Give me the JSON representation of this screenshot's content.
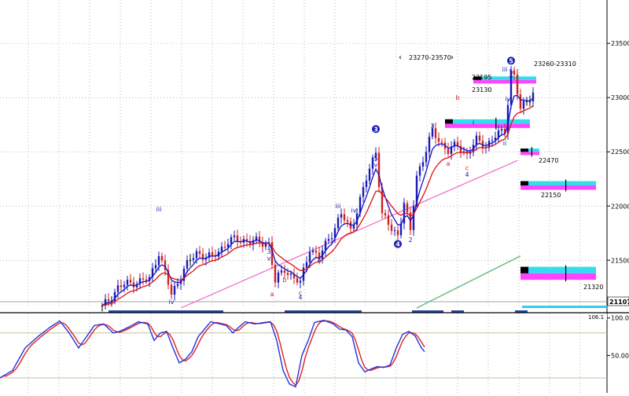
{
  "chart_data": [
    {
      "type": "candlestick",
      "panel": "price",
      "y_axis_side": "right",
      "ylim": [
        21060,
        23900
      ],
      "yticks": [
        21500,
        22000,
        22500,
        23000,
        23500
      ],
      "ytick_labels": [
        "21500",
        "22000",
        "22500",
        "23000",
        "23500"
      ],
      "last_price_label": "21107",
      "range_label": "23270-23570",
      "price_labels": [
        "23260-23310",
        "23195",
        "23130",
        "22470",
        "22150",
        "21320"
      ],
      "wave_labels": [
        {
          "text": "iii",
          "color": "#1a1ab4",
          "bar": 18,
          "price": 21950
        },
        {
          "text": "iv",
          "color": "#1a1ab4",
          "bar": 22,
          "price": 21095
        },
        {
          "text": "3",
          "color": "#1a1ab4",
          "bar": 53,
          "price": 21560
        },
        {
          "text": "v",
          "color": "#1a1ab4",
          "bar": 53,
          "price": 21500
        },
        {
          "text": "a",
          "color": "#cc2222",
          "bar": 54,
          "price": 21170
        },
        {
          "text": "b",
          "color": "#cc2222",
          "bar": 58,
          "price": 21300
        },
        {
          "text": "c",
          "color": "#cc2222",
          "bar": 63,
          "price": 21180
        },
        {
          "text": "4",
          "color": "#1a1ab4",
          "bar": 63,
          "price": 21140
        },
        {
          "text": "i",
          "color": "#1a1ab4",
          "bar": 65,
          "price": 21440
        },
        {
          "text": "ii",
          "color": "#1a1ab4",
          "bar": 69,
          "price": 21480
        },
        {
          "text": "iii",
          "color": "#1a1ab4",
          "bar": 75,
          "price": 21980
        },
        {
          "text": "iv",
          "color": "#1a1ab4",
          "bar": 80,
          "price": 21940
        },
        {
          "text": "5",
          "color": "#1a1ab4",
          "bar": 87,
          "price": 22420
        },
        {
          "text": "v",
          "color": "#1a1ab4",
          "bar": 87,
          "price": 22360
        },
        {
          "text": "1",
          "color": "#1a1ab4",
          "bar": 96,
          "price": 21990
        },
        {
          "text": "2",
          "color": "#1a1ab4",
          "bar": 98,
          "price": 21670
        },
        {
          "text": "3",
          "color": "#1a1ab4",
          "bar": 105,
          "price": 22720
        },
        {
          "text": "a",
          "color": "#cc2222",
          "bar": 110,
          "price": 22370
        },
        {
          "text": "b",
          "color": "#cc2222",
          "bar": 113,
          "price": 22980
        },
        {
          "text": "i",
          "color": "#1a1ab4",
          "bar": 118,
          "price": 22750
        },
        {
          "text": "c",
          "color": "#cc2222",
          "bar": 116,
          "price": 22330
        },
        {
          "text": "4",
          "color": "#1a1ab4",
          "bar": 116,
          "price": 22270
        },
        {
          "text": "iii",
          "color": "#1a1ab4",
          "bar": 128,
          "price": 23240
        },
        {
          "text": "5",
          "color": "#1a1ab4",
          "bar": 130,
          "price": 23220
        },
        {
          "text": "v",
          "color": "#1a1ab4",
          "bar": 130,
          "price": 23170
        },
        {
          "text": "iv",
          "color": "#1a1ab4",
          "bar": 129,
          "price": 22970
        },
        {
          "text": "ii",
          "color": "#1a1ab4",
          "bar": 128,
          "price": 22560
        }
      ],
      "wave_circles": [
        {
          "text": "3",
          "bar": 87,
          "price": 22710
        },
        {
          "text": "4",
          "bar": 94,
          "price": 21650
        },
        {
          "text": "5",
          "bar": 130,
          "price": 23340
        }
      ],
      "wave_points": [
        [
          0,
          21060
        ],
        [
          5,
          21250
        ],
        [
          10,
          21300
        ],
        [
          15,
          21320
        ],
        [
          18,
          21580
        ],
        [
          22,
          21180
        ],
        [
          26,
          21420
        ],
        [
          30,
          21570
        ],
        [
          35,
          21520
        ],
        [
          40,
          21680
        ],
        [
          45,
          21690
        ],
        [
          50,
          21660
        ],
        [
          53,
          21660
        ],
        [
          55,
          21300
        ],
        [
          58,
          21420
        ],
        [
          63,
          21280
        ],
        [
          66,
          21620
        ],
        [
          69,
          21520
        ],
        [
          72,
          21700
        ],
        [
          76,
          21920
        ],
        [
          79,
          21780
        ],
        [
          83,
          22150
        ],
        [
          87,
          22520
        ],
        [
          89,
          21920
        ],
        [
          92,
          21780
        ],
        [
          94,
          21740
        ],
        [
          96,
          22030
        ],
        [
          98,
          21760
        ],
        [
          100,
          22280
        ],
        [
          103,
          22520
        ],
        [
          105,
          22680
        ],
        [
          110,
          22510
        ],
        [
          113,
          22560
        ],
        [
          116,
          22480
        ],
        [
          119,
          22600
        ],
        [
          122,
          22560
        ],
        [
          125,
          22640
        ],
        [
          128,
          22700
        ],
        [
          130,
          23240
        ],
        [
          131,
          23200
        ],
        [
          133,
          22880
        ],
        [
          135,
          22980
        ],
        [
          137,
          23050
        ]
      ],
      "series": [
        {
          "role": "candles",
          "color_up": "#1a1ab4",
          "color_down": "#cc2222",
          "color_flat": "#000000"
        },
        {
          "role": "fast_ma",
          "color": "#1111cc"
        },
        {
          "role": "slow_ma",
          "color": "#dd1111"
        },
        {
          "role": "trend_line",
          "color": "#ee66cc",
          "points": [
            {
              "bar": 25,
              "price": 21060
            },
            {
              "bar": 132,
              "price": 22420
            }
          ]
        },
        {
          "role": "long_ma",
          "color": "#66bb77",
          "points": [
            {
              "bar": 100,
              "price": 21060
            },
            {
              "bar": 133,
              "price": 21540
            }
          ]
        }
      ],
      "zones": [
        {
          "label": "23195",
          "bar_from": 118,
          "bar_to": 138,
          "price_from": 23130,
          "price_to": 23195,
          "colors": [
            "#ff44ff",
            "#33ddee"
          ]
        },
        {
          "label": "",
          "bar_from": 109,
          "bar_to": 136,
          "price_from": 22720,
          "price_to": 22800,
          "colors": [
            "#ff44ff",
            "#33ddee"
          ]
        },
        {
          "label": "22470",
          "bar_from": 133,
          "bar_to": 139,
          "price_from": 22470,
          "price_to": 22530,
          "colors": [
            "#ff44ff",
            "#33ddee"
          ]
        },
        {
          "label": "22150",
          "bar_from": 133,
          "bar_to": 157,
          "price_from": 22150,
          "price_to": 22230,
          "colors": [
            "#ff44ff",
            "#33ddee"
          ]
        },
        {
          "label": "21320",
          "bar_from": 133,
          "bar_to": 157,
          "price_from": 21320,
          "price_to": 21440,
          "colors": [
            "#ff44ff",
            "#33ddee"
          ]
        }
      ]
    },
    {
      "type": "line",
      "panel": "oscillator",
      "ylim": [
        0,
        106
      ],
      "yticks": [
        50,
        100
      ],
      "ytick_labels": [
        "50.00",
        "100.00"
      ],
      "top_label": "106.1",
      "levels": [
        80,
        20
      ],
      "series": [
        {
          "role": "k_line",
          "color": "#2233dd"
        },
        {
          "role": "d_line",
          "color": "#dd2222"
        }
      ],
      "k_points": [
        [
          0,
          20
        ],
        [
          4,
          30
        ],
        [
          8,
          60
        ],
        [
          12,
          75
        ],
        [
          16,
          88
        ],
        [
          19,
          96
        ],
        [
          22,
          80
        ],
        [
          25,
          60
        ],
        [
          27,
          72
        ],
        [
          30,
          90
        ],
        [
          33,
          92
        ],
        [
          36,
          80
        ],
        [
          38,
          82
        ],
        [
          41,
          88
        ],
        [
          44,
          95
        ],
        [
          47,
          92
        ],
        [
          49,
          70
        ],
        [
          51,
          80
        ],
        [
          53,
          82
        ],
        [
          55,
          60
        ],
        [
          57,
          40
        ],
        [
          59,
          45
        ],
        [
          61,
          55
        ],
        [
          63,
          75
        ],
        [
          65,
          85
        ],
        [
          67,
          95
        ],
        [
          70,
          92
        ],
        [
          72,
          90
        ],
        [
          74,
          80
        ],
        [
          76,
          88
        ],
        [
          78,
          95
        ],
        [
          81,
          92
        ],
        [
          84,
          94
        ],
        [
          86,
          95
        ],
        [
          88,
          70
        ],
        [
          90,
          30
        ],
        [
          92,
          12
        ],
        [
          94,
          8
        ],
        [
          96,
          50
        ],
        [
          98,
          70
        ],
        [
          100,
          94
        ],
        [
          103,
          97
        ],
        [
          106,
          92
        ],
        [
          108,
          85
        ],
        [
          110,
          84
        ],
        [
          112,
          75
        ],
        [
          114,
          40
        ],
        [
          116,
          28
        ],
        [
          118,
          32
        ],
        [
          120,
          35
        ],
        [
          122,
          34
        ],
        [
          124,
          37
        ],
        [
          126,
          60
        ],
        [
          128,
          78
        ],
        [
          130,
          82
        ],
        [
          132,
          76
        ],
        [
          134,
          60
        ],
        [
          135,
          55
        ]
      ]
    }
  ]
}
